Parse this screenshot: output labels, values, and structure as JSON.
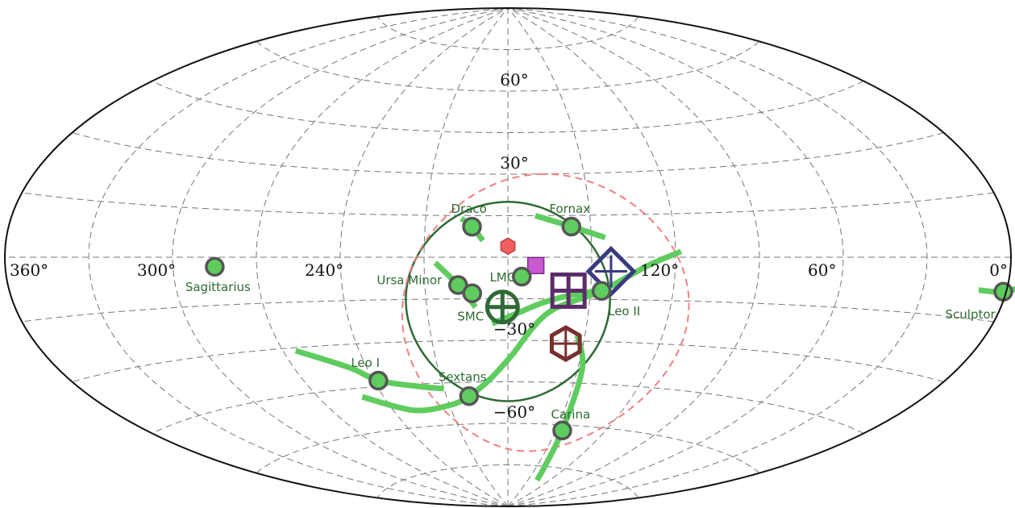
{
  "chart_data": {
    "type": "scatter",
    "projection": "aitoff",
    "grid": true,
    "longitude_axis": {
      "range": [
        0,
        360
      ],
      "direction": "decreasing-to-right",
      "ticks": [
        "360°",
        "300°",
        "240°",
        "120°",
        "60°",
        "0°"
      ],
      "tick_values": [
        360,
        300,
        240,
        120,
        60,
        0
      ]
    },
    "latitude_axis": {
      "range": [
        -90,
        90
      ],
      "ticks": [
        "60°",
        "30°",
        "−30°",
        "−60°"
      ],
      "tick_values": [
        60,
        30,
        -30,
        -60
      ]
    },
    "colors": {
      "dwarf_fill": "#5fcc5f",
      "dwarf_edge": "#555555",
      "track": "#5fcc5f",
      "label": "#2e6b32",
      "circle": "#2f6a36",
      "dashed_circle": "#f08080",
      "grid": "#777777"
    },
    "dwarfs": [
      {
        "name": "Sagittarius",
        "lon": 285,
        "lat": -3
      },
      {
        "name": "Draco",
        "lon": 193,
        "lat": 11
      },
      {
        "name": "Fornax",
        "lon": 157,
        "lat": 11
      },
      {
        "name": "LMC",
        "lon": 175,
        "lat": -7
      },
      {
        "name": "Ursa Minor",
        "lon": 198,
        "lat": -10
      },
      {
        "name": "SMC",
        "lon": 193,
        "lat": -13
      },
      {
        "name": "Leo II",
        "lon": 146,
        "lat": -12
      },
      {
        "name": "Leo I",
        "lon": 238,
        "lat": -43
      },
      {
        "name": "Sextans",
        "lon": 199,
        "lat": -50
      },
      {
        "name": "Carina",
        "lon": 146,
        "lat": -62
      },
      {
        "name": "Sculptor",
        "lon": 1,
        "lat": -8
      }
    ],
    "tracks": [
      {
        "name": "Leo I",
        "points": [
          [
            265,
            -31
          ],
          [
            247,
            -38
          ],
          [
            238,
            -43
          ],
          [
            220,
            -46
          ],
          [
            210,
            -47
          ]
        ]
      },
      {
        "name": "Sextans",
        "points": [
          [
            250,
            -48
          ],
          [
            230,
            -54
          ],
          [
            210,
            -53
          ],
          [
            199,
            -50
          ],
          [
            188,
            -44
          ],
          [
            178,
            -35
          ]
        ]
      },
      {
        "name": "Sextans",
        "points": [
          [
            178,
            -35
          ],
          [
            165,
            -20
          ],
          [
            146,
            -12
          ],
          [
            130,
            -3
          ],
          [
            118,
            2
          ]
        ]
      },
      {
        "name": "Carina",
        "points": [
          [
            153,
            -28
          ],
          [
            148,
            -40
          ],
          [
            146,
            -62
          ],
          [
            142,
            -75
          ],
          [
            137,
            -80
          ]
        ]
      },
      {
        "name": "Fornax",
        "points": [
          [
            170,
            15
          ],
          [
            157,
            11
          ],
          [
            145,
            7
          ]
        ]
      },
      {
        "name": "Draco",
        "points": [
          [
            197,
            14
          ],
          [
            193,
            11
          ],
          [
            189,
            6
          ]
        ]
      },
      {
        "name": "Ursa Minor",
        "points": [
          [
            206,
            -2
          ],
          [
            198,
            -10
          ],
          [
            192,
            -18
          ]
        ]
      },
      {
        "name": "Sculptor",
        "points": [
          [
            10,
            -8
          ],
          [
            1,
            -8
          ],
          [
            -8,
            -6
          ]
        ]
      },
      {
        "name": "LMC",
        "points": [
          [
            186,
            -24
          ],
          [
            176,
            -20
          ],
          [
            166,
            -16
          ],
          [
            154,
            -13
          ],
          [
            146,
            -12
          ]
        ]
      }
    ],
    "markers": [
      {
        "shape": "circle-plus",
        "lon": 182,
        "lat": -18,
        "color": "#2f6a36"
      },
      {
        "shape": "square-grid",
        "lon": 158,
        "lat": -12,
        "color": "#5b2c68"
      },
      {
        "shape": "diamond-plus",
        "lon": 143,
        "lat": -5,
        "color": "#3a3a80"
      },
      {
        "shape": "hexagon-plus",
        "lon": 157,
        "lat": -31,
        "color": "#7a3030"
      },
      {
        "shape": "hexagon",
        "lon": 180,
        "lat": 4,
        "color": "#f06060"
      },
      {
        "shape": "square",
        "lon": 170,
        "lat": -3,
        "color": "#c85ad0"
      }
    ],
    "circles": [
      {
        "center_lon": 180,
        "center_lat": -16,
        "radius_deg": 36,
        "style": "solid",
        "color": "#2f6a36"
      },
      {
        "center_lon": 166,
        "center_lat": -20,
        "radius_deg": 50,
        "style": "dashed",
        "color": "#f08080"
      }
    ]
  }
}
